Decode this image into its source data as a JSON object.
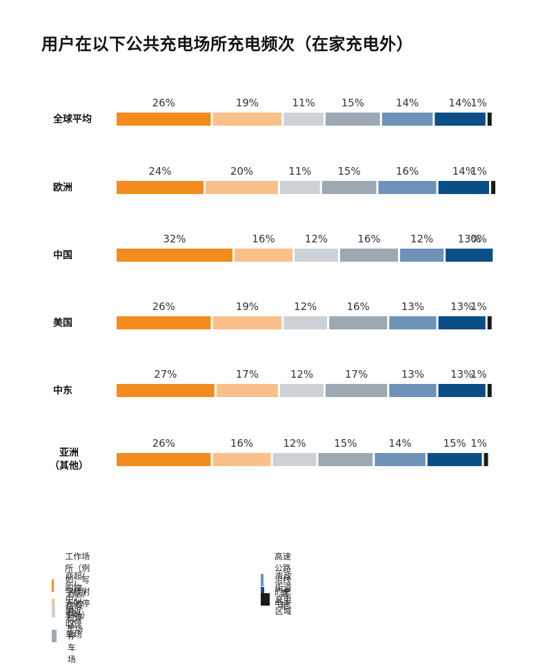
{
  "title": "用户在以下公共充电场所充电频次（在家充电外）",
  "chart_data": {
    "type": "bar",
    "stacked": true,
    "orientation": "horizontal",
    "unit": "%",
    "categories": [
      "全球平均",
      "欧洲",
      "中国",
      "美国",
      "中东",
      "亚洲\n（其他）"
    ],
    "series": [
      {
        "name": "工作场所（例如，写字楼附近的停车场）",
        "color": "#F28C1E",
        "values": [
          26,
          24,
          32,
          26,
          27,
          26
        ]
      },
      {
        "name": "商超/购物中心附近的停车场",
        "color": "#FBC08A",
        "values": [
          19,
          20,
          16,
          19,
          17,
          16
        ]
      },
      {
        "name": "酒店/度假村停车场",
        "color": "#CDD2D7",
        "values": [
          11,
          11,
          12,
          12,
          12,
          12
        ]
      },
      {
        "name": "社区停车场",
        "color": "#9DA8B3",
        "values": [
          15,
          15,
          16,
          16,
          17,
          15
        ]
      },
      {
        "name": "高速公路沿线的充电点",
        "color": "#6F93B8",
        "values": [
          14,
          16,
          12,
          13,
          13,
          14
        ]
      },
      {
        "name": "市政街道充电区域",
        "color": "#0B4F86",
        "values": [
          14,
          14,
          13,
          13,
          13,
          15
        ]
      },
      {
        "name": "其他",
        "color": "#1A1A1A",
        "values": [
          1,
          1,
          0,
          1,
          1,
          1
        ]
      }
    ]
  }
}
